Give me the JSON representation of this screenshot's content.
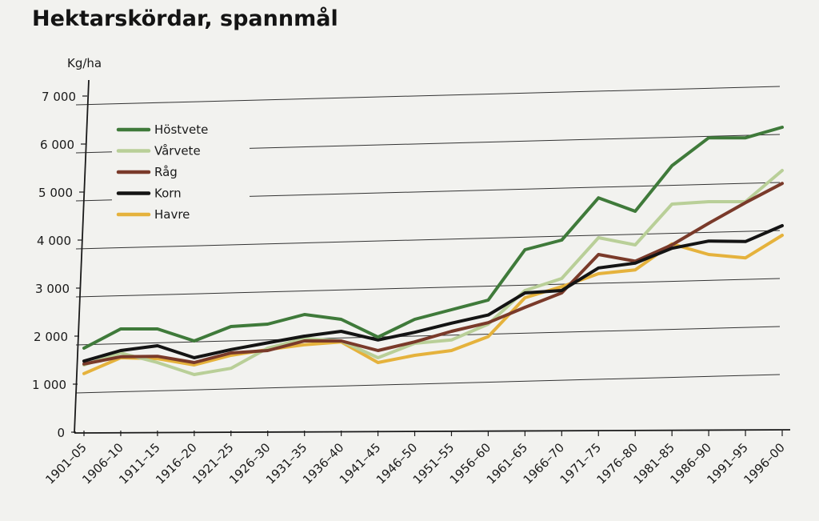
{
  "chart_data": {
    "type": "line",
    "title": "Hektarskördar, spannmål",
    "ylabel": "Kg/ha",
    "xlabel": "",
    "ylim": [
      0,
      7000
    ],
    "yticks": [
      0,
      1000,
      2000,
      3000,
      4000,
      5000,
      6000,
      7000
    ],
    "ytick_labels": [
      "0",
      "1 000",
      "2 000",
      "3 000",
      "4 000",
      "5 000",
      "6 000",
      "7 000"
    ],
    "grid": "horizontal",
    "legend_position": "top-left",
    "categories": [
      "1901–05",
      "1906–10",
      "1911–15",
      "1916–20",
      "1921–25",
      "1926–30",
      "1931–35",
      "1936–40",
      "1941–45",
      "1946–50",
      "1951–55",
      "1956–60",
      "1961–65",
      "1966–70",
      "1971–75",
      "1976–80",
      "1981–85",
      "1986–90",
      "1991–95",
      "1996–00"
    ],
    "series": [
      {
        "name": "Höstvete",
        "color": "#3f7a3a",
        "values": [
          1750,
          2150,
          2150,
          1900,
          2200,
          2250,
          2450,
          2350,
          1980,
          2350,
          2550,
          2750,
          3800,
          4000,
          4880,
          4600,
          5550,
          6130,
          6130,
          6350
        ]
      },
      {
        "name": "Vårvete",
        "color": "#b9cf98",
        "values": [
          1400,
          1650,
          1450,
          1200,
          1330,
          1750,
          1950,
          1900,
          1550,
          1850,
          1920,
          2250,
          2950,
          3200,
          4050,
          3900,
          4750,
          4800,
          4800,
          5450
        ]
      },
      {
        "name": "Råg",
        "color": "#7a3a2a",
        "values": [
          1420,
          1570,
          1580,
          1450,
          1650,
          1700,
          1900,
          1900,
          1700,
          1880,
          2100,
          2280,
          2600,
          2900,
          3700,
          3560,
          3900,
          4350,
          4780,
          5180
        ]
      },
      {
        "name": "Korn",
        "color": "#141414",
        "values": [
          1480,
          1700,
          1800,
          1550,
          1720,
          1860,
          2000,
          2100,
          1920,
          2080,
          2270,
          2440,
          2900,
          2950,
          3420,
          3520,
          3830,
          3980,
          3970,
          4300
        ]
      },
      {
        "name": "Havre",
        "color": "#e5b23c",
        "values": [
          1220,
          1550,
          1530,
          1400,
          1600,
          1720,
          1820,
          1880,
          1450,
          1600,
          1700,
          1990,
          2800,
          3030,
          3300,
          3380,
          3920,
          3700,
          3630,
          4100
        ]
      }
    ]
  }
}
